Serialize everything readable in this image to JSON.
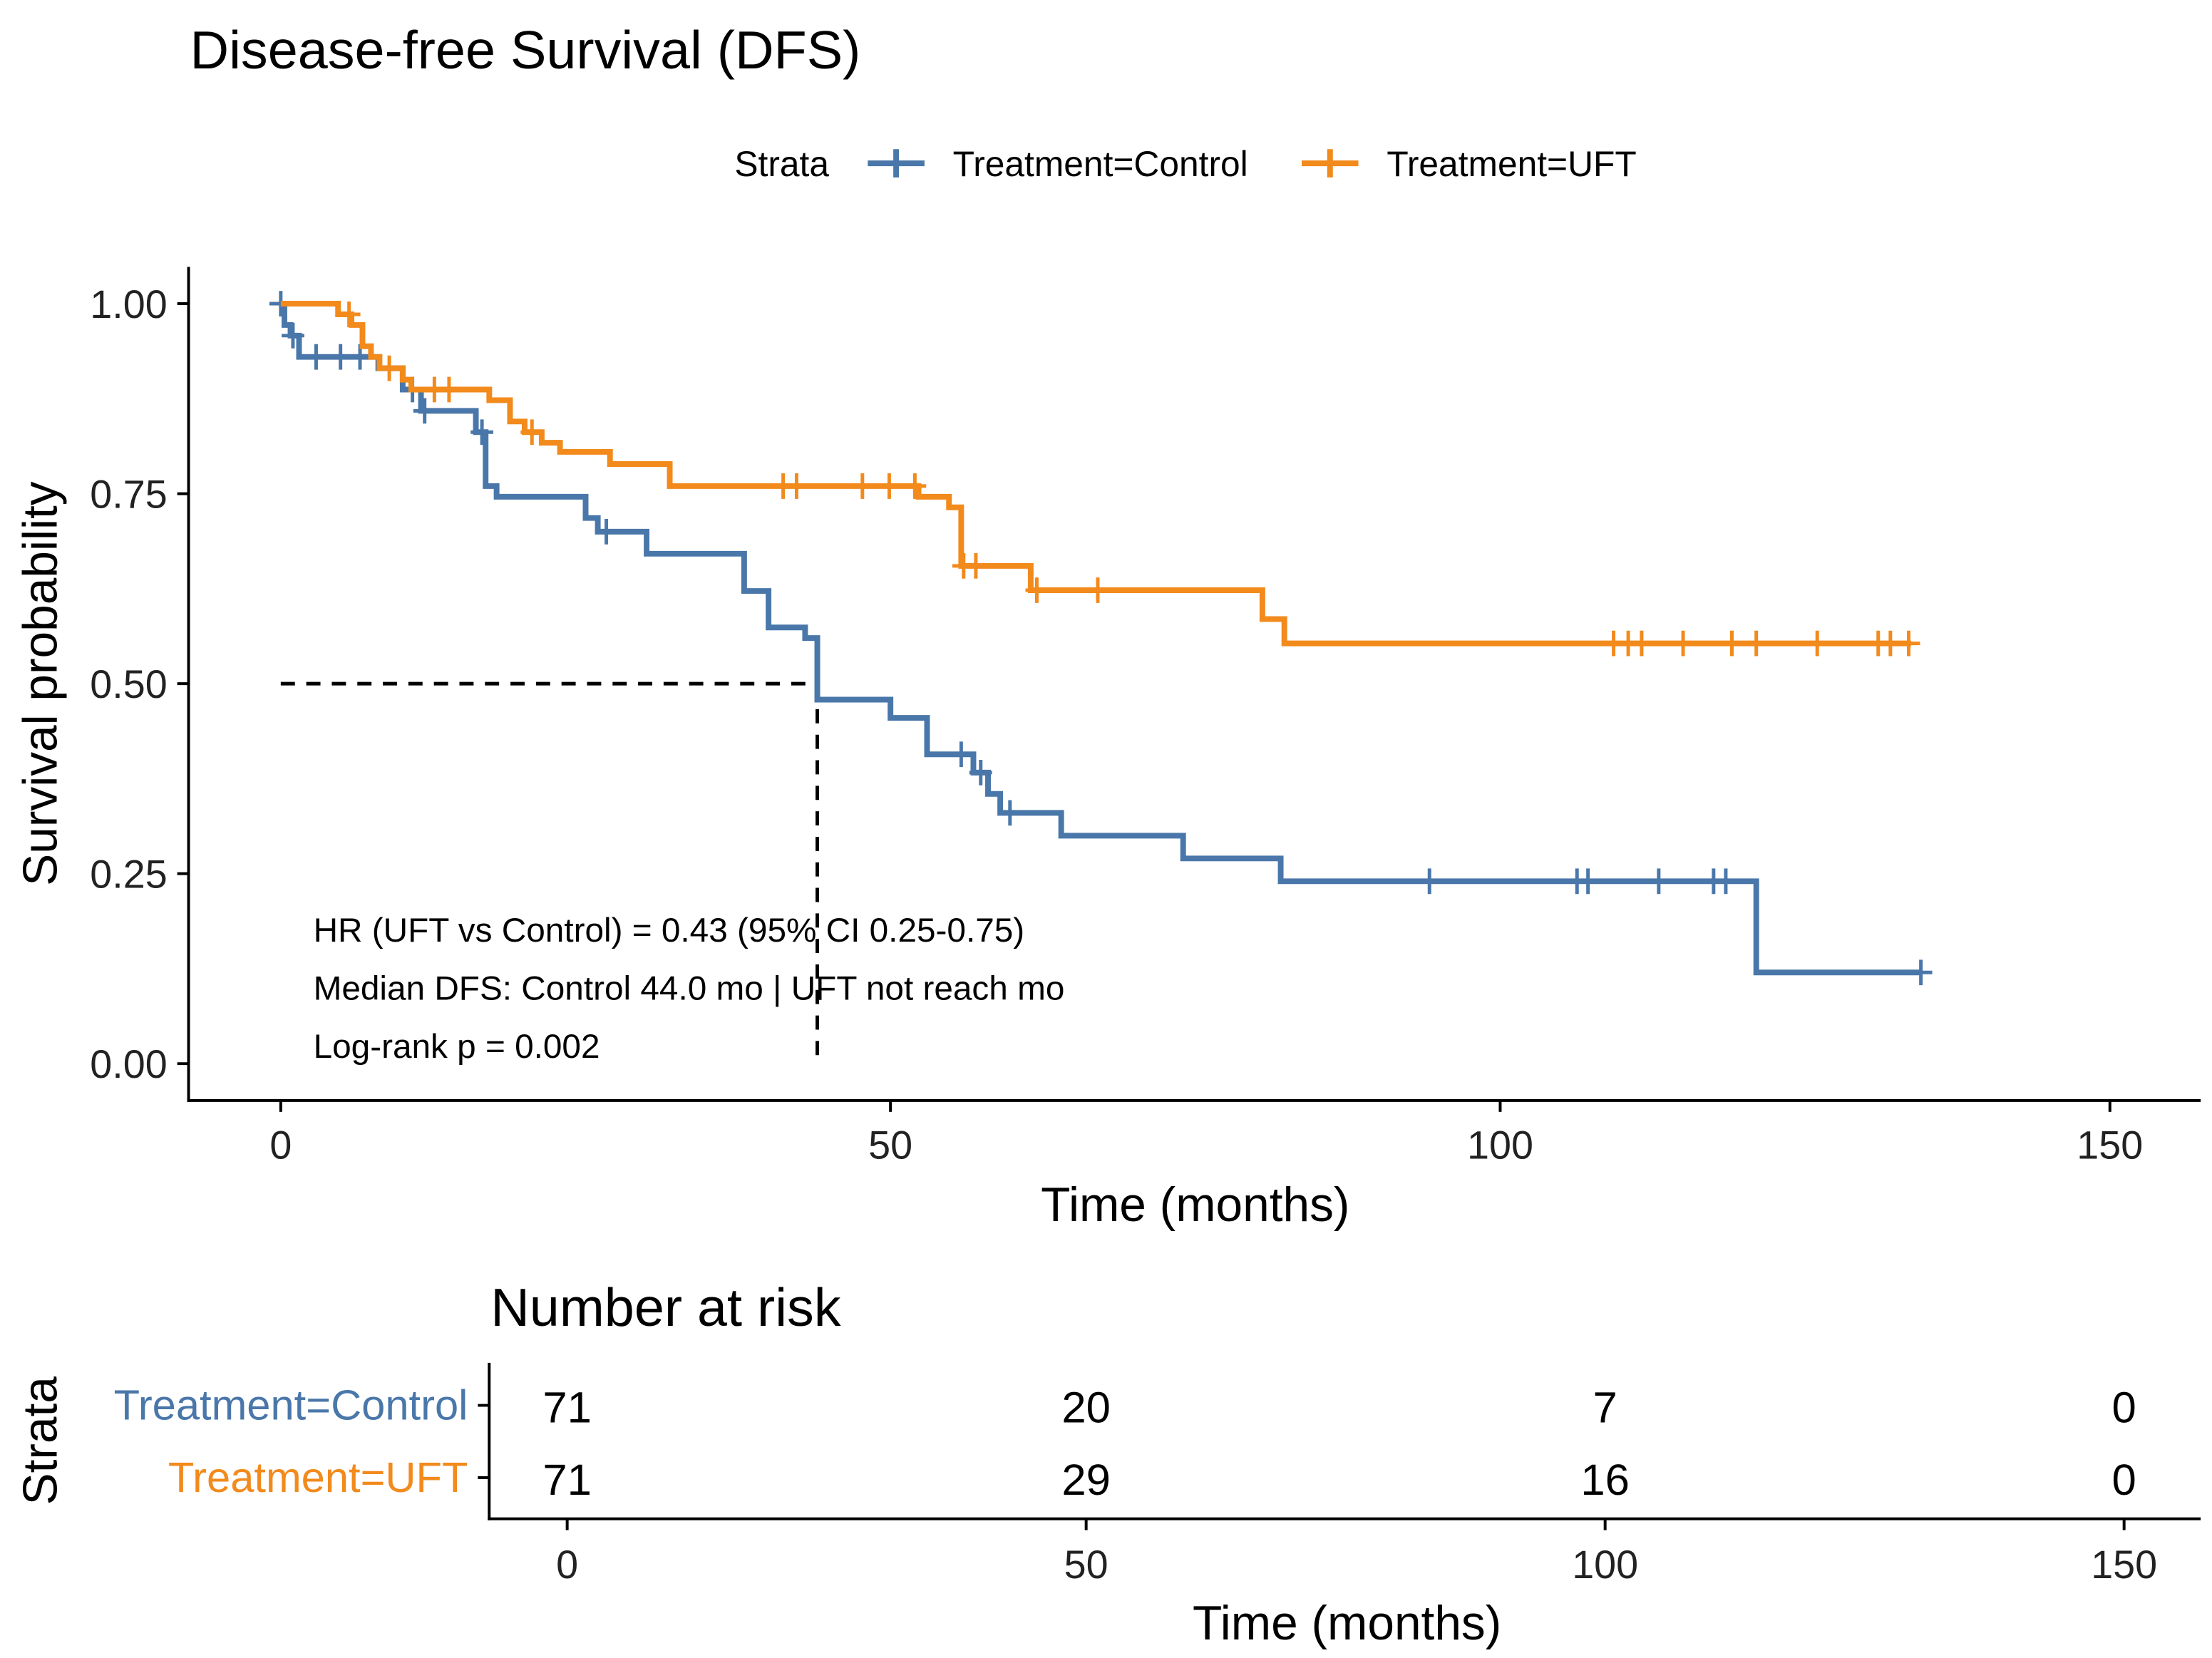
{
  "chart_data": {
    "type": "line",
    "subtype": "kaplan-meier",
    "title": "Disease-free Survival (DFS)",
    "xlabel": "Time (months)",
    "ylabel": "Survival probability",
    "xlim": [
      0,
      150
    ],
    "ylim": [
      0,
      1
    ],
    "xticks": [
      "0",
      "50",
      "100",
      "150"
    ],
    "yticks": [
      "0.00",
      "0.25",
      "0.50",
      "0.75",
      "1.00"
    ],
    "xtick_values": [
      0,
      50,
      100,
      150
    ],
    "ytick_values": [
      0,
      0.25,
      0.5,
      0.75,
      1.0
    ],
    "legend": {
      "title": "Strata",
      "placement": "top"
    },
    "median_line": {
      "time": 44.0,
      "survival": 0.5
    },
    "series": [
      {
        "name": "Treatment=Control",
        "color": "#4A77AA",
        "steps": [
          [
            0,
            1.0
          ],
          [
            0.3,
            0.972
          ],
          [
            0.8,
            0.958
          ],
          [
            1.5,
            0.93
          ],
          [
            8,
            0.915
          ],
          [
            10,
            0.887
          ],
          [
            11.5,
            0.859
          ],
          [
            16,
            0.831
          ],
          [
            16.8,
            0.76
          ],
          [
            17.7,
            0.746
          ],
          [
            25,
            0.718
          ],
          [
            26,
            0.7
          ],
          [
            30,
            0.671
          ],
          [
            38,
            0.622
          ],
          [
            40,
            0.574
          ],
          [
            43,
            0.56
          ],
          [
            44,
            0.479
          ],
          [
            50,
            0.455
          ],
          [
            53,
            0.407
          ],
          [
            56.8,
            0.383
          ],
          [
            58,
            0.355
          ],
          [
            59,
            0.33
          ],
          [
            64,
            0.3
          ],
          [
            74,
            0.27
          ],
          [
            82,
            0.24
          ],
          [
            121,
            0.12
          ],
          [
            134.5,
            0.12
          ]
        ],
        "censored": [
          0,
          1,
          2.9,
          4.9,
          6.5,
          10.8,
          11.8,
          16.5,
          26.7,
          55.8,
          57.4,
          59.8,
          94.2,
          106.3,
          107.2,
          113,
          117.5,
          118.5,
          134.5
        ]
      },
      {
        "name": "Treatment=UFT",
        "color": "#F28A1C",
        "steps": [
          [
            0,
            1.0
          ],
          [
            4.7,
            0.986
          ],
          [
            5.8,
            0.972
          ],
          [
            6.7,
            0.944
          ],
          [
            7.4,
            0.93
          ],
          [
            8.1,
            0.915
          ],
          [
            10,
            0.9
          ],
          [
            10.7,
            0.887
          ],
          [
            17.1,
            0.873
          ],
          [
            18.8,
            0.845
          ],
          [
            20,
            0.831
          ],
          [
            21.4,
            0.817
          ],
          [
            22.9,
            0.805
          ],
          [
            27,
            0.789
          ],
          [
            31.9,
            0.76
          ],
          [
            52.3,
            0.746
          ],
          [
            54.8,
            0.732
          ],
          [
            55.8,
            0.655
          ],
          [
            61.5,
            0.623
          ],
          [
            80.5,
            0.585
          ],
          [
            82.3,
            0.553
          ],
          [
            133.7,
            0.553
          ]
        ],
        "censored": [
          5.6,
          8.9,
          12.6,
          13.8,
          20.6,
          41.2,
          42.3,
          47.7,
          49.9,
          52,
          56,
          57,
          62,
          67,
          109.3,
          110.5,
          111.6,
          115,
          119,
          121,
          126,
          131,
          132,
          133.5
        ]
      }
    ],
    "annotations": [
      "HR (UFT vs Control) = 0.43 (95% CI 0.25-0.75)",
      "Median DFS: Control 44.0 mo | UFT not reach mo",
      "Log-rank p = 0.002"
    ],
    "risk_table": {
      "title": "Number at risk",
      "ylabel": "Strata",
      "xlabel": "Time (months)",
      "times": [
        0,
        50,
        100,
        150
      ],
      "xticks": [
        "0",
        "50",
        "100",
        "150"
      ],
      "rows": [
        {
          "name": "Treatment=Control",
          "color": "#4A77AA",
          "counts": [
            "71",
            "20",
            "7",
            "0"
          ]
        },
        {
          "name": "Treatment=UFT",
          "color": "#F28A1C",
          "counts": [
            "71",
            "29",
            "16",
            "0"
          ]
        }
      ]
    }
  }
}
